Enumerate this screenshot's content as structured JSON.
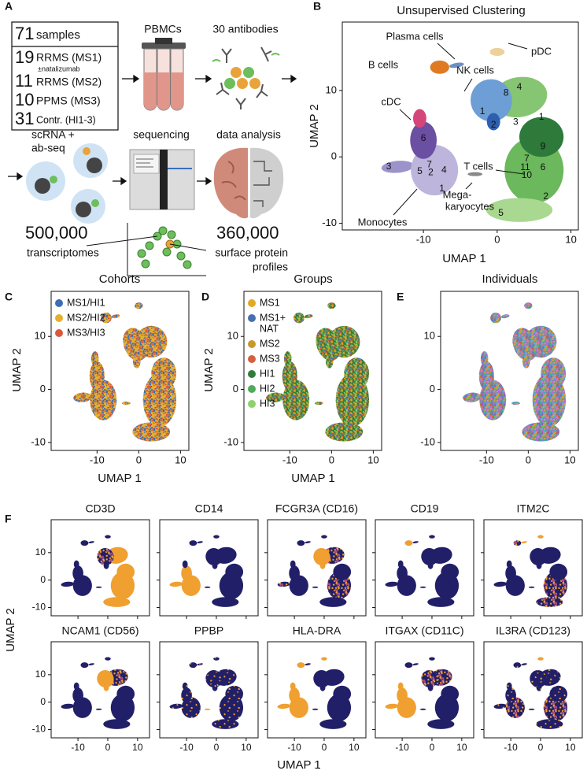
{
  "panel_labels": [
    "A",
    "B",
    "C",
    "D",
    "E",
    "F"
  ],
  "axes": {
    "x_label": "UMAP 1",
    "y_label": "UMAP 2",
    "ticks": [
      -10,
      0,
      10
    ]
  },
  "study_design": {
    "cohort_table": [
      {
        "count": 71,
        "label": "samples"
      },
      {
        "count": 19,
        "label": "RRMS (MS1)",
        "note": "±natalizumab"
      },
      {
        "count": 11,
        "label": "RRMS (MS2)"
      },
      {
        "count": 10,
        "label": "PPMS (MS3)"
      },
      {
        "count": 31,
        "label": "Contr. (HI1-3)"
      }
    ],
    "steps": {
      "pbmcs": "PBMCs",
      "antibodies": "30 antibodies",
      "assay": [
        "scRNA +",
        "ab-seq"
      ],
      "sequencing": "sequencing",
      "analysis": "data analysis"
    },
    "outputs": [
      {
        "count": "500,000",
        "label": [
          "transcriptomes"
        ]
      },
      {
        "count": "360,000",
        "label": [
          "surface protein",
          "profiles"
        ]
      }
    ]
  },
  "clustering": {
    "title": "Unsupervised Clustering",
    "cell_types": [
      "Plasma cells",
      "B cells",
      "pDC",
      "NK cells",
      "cDC",
      "T cells",
      "Mega-",
      "karyocytes",
      "Monocytes"
    ],
    "clusters": [
      6,
      3,
      5,
      7,
      2,
      4,
      1,
      1,
      2,
      8,
      4,
      3,
      1,
      9,
      7,
      11,
      10,
      6,
      2,
      5
    ]
  },
  "cohorts": {
    "title": "Cohorts",
    "legend": [
      {
        "label": [
          "MS1/HI1"
        ],
        "color": "#3f6db3"
      },
      {
        "label": [
          "MS2/HI2"
        ],
        "color": "#e6b02e"
      },
      {
        "label": [
          "MS3/HI3"
        ],
        "color": "#d65a3c"
      }
    ]
  },
  "groups": {
    "title": "Groups",
    "legend": [
      {
        "label": [
          "MS1"
        ],
        "color": "#e5a823"
      },
      {
        "label": [
          "MS1+",
          "NAT"
        ],
        "color": "#4a6fb0"
      },
      {
        "label": [
          "MS2"
        ],
        "color": "#c8982c"
      },
      {
        "label": [
          "MS3"
        ],
        "color": "#d4603e"
      },
      {
        "label": [
          "HI1"
        ],
        "color": "#2f7d3a"
      },
      {
        "label": [
          "HI2"
        ],
        "color": "#4faa5a"
      },
      {
        "label": [
          "HI3"
        ],
        "color": "#8fd16b"
      }
    ]
  },
  "individuals": {
    "title": "Individuals"
  },
  "markers": {
    "genes": [
      "CD3D",
      "CD14",
      "FCGR3A (CD16)",
      "CD19",
      "ITM2C",
      "NCAM1 (CD56)",
      "PPBP",
      "HLA-DRA",
      "ITGAX (CD11C)",
      "IL3RA (CD123)"
    ]
  }
}
